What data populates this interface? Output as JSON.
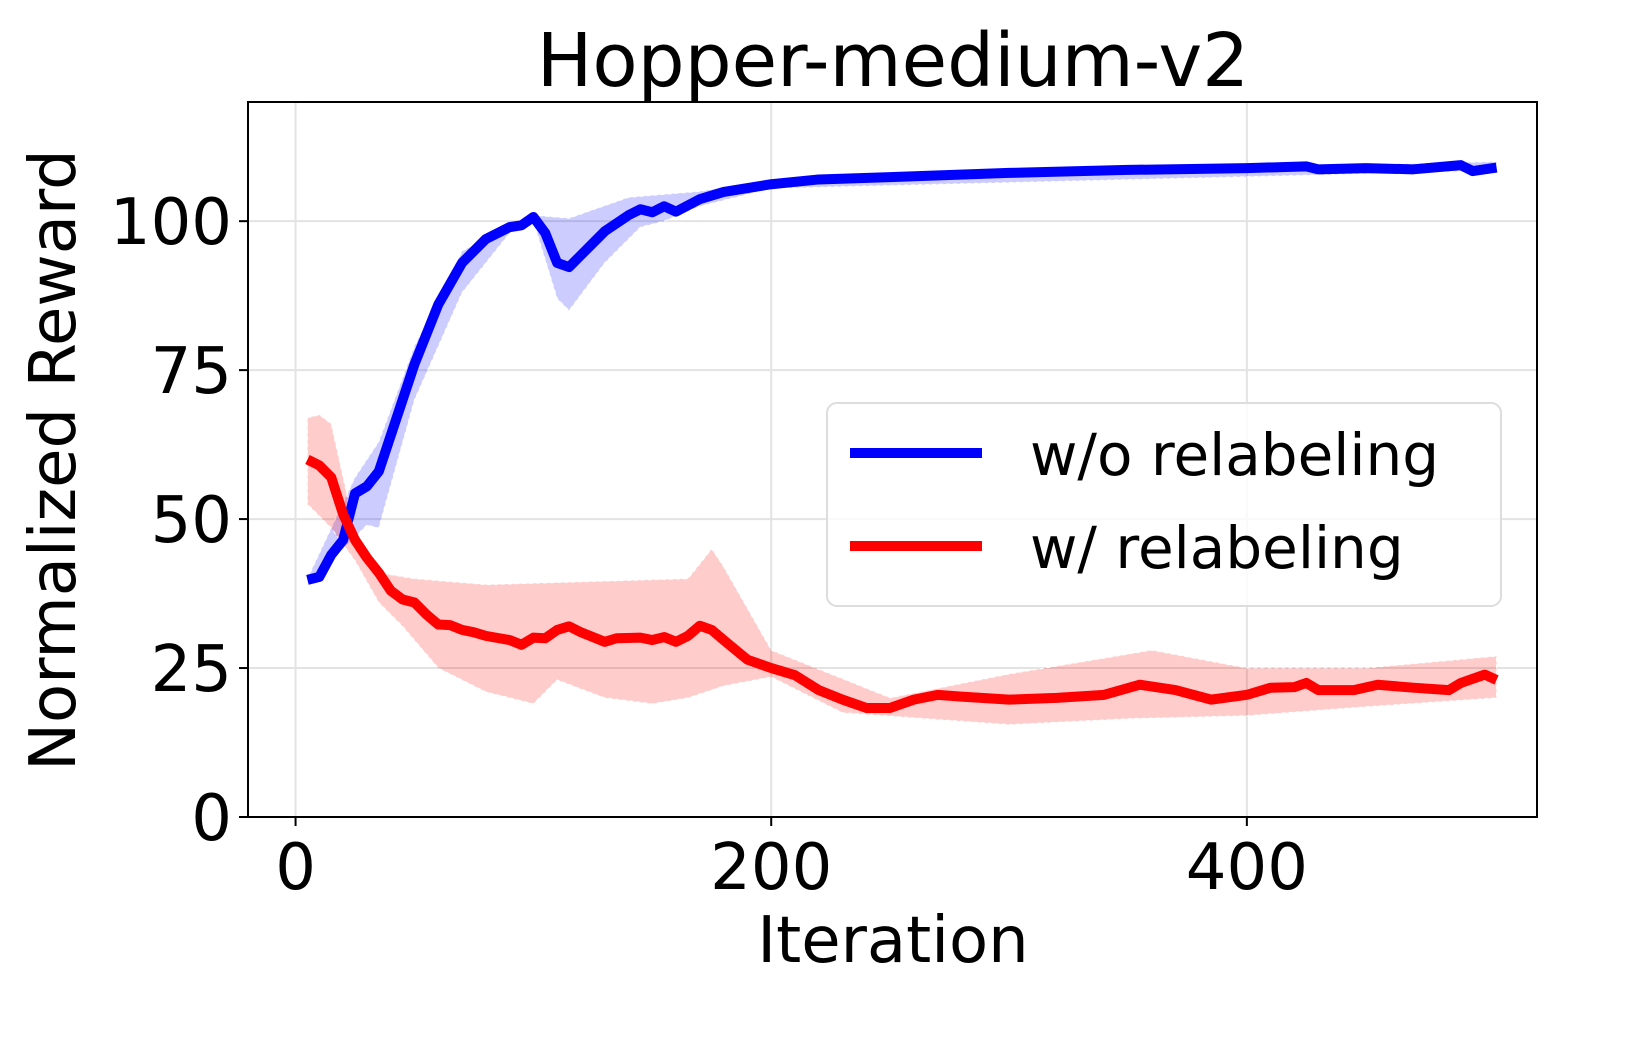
{
  "chart_data": {
    "type": "line",
    "title": "Hopper-medium-v2",
    "xlabel": "Iteration",
    "ylabel": "Normalized Reward",
    "xlim": [
      -20,
      522
    ],
    "ylim": [
      0,
      120
    ],
    "xticks": [
      0,
      200,
      400
    ],
    "yticks": [
      0,
      25,
      50,
      75,
      100
    ],
    "grid": true,
    "legend": "center-right",
    "series": [
      {
        "name": "w/o relabeling",
        "color": "#0000ff",
        "x": [
          5,
          10,
          15,
          20,
          25,
          30,
          35,
          40,
          50,
          60,
          70,
          80,
          90,
          95,
          100,
          105,
          110,
          115,
          120,
          130,
          140,
          145,
          150,
          155,
          160,
          170,
          180,
          200,
          220,
          250,
          300,
          350,
          400,
          425,
          430,
          450,
          470,
          490,
          495,
          505
        ],
        "y": [
          39.8,
          40.3,
          44,
          46.5,
          54.3,
          55.5,
          58,
          64,
          76,
          86,
          93,
          97,
          99,
          99.3,
          100.7,
          98,
          93,
          92.3,
          94.3,
          98.3,
          101,
          102,
          101.5,
          102.5,
          101.6,
          103.7,
          104.9,
          106.2,
          107,
          107.4,
          108.1,
          108.6,
          108.9,
          109.2,
          108.7,
          108.9,
          108.7,
          109.4,
          108.4,
          109
        ],
        "band": {
          "x_upper": [
            5,
            25,
            35,
            50,
            70,
            100,
            115,
            140,
            170,
            200,
            505
          ],
          "upper": [
            40,
            57,
            63,
            79,
            95,
            101,
            100.5,
            104,
            105,
            107,
            110
          ],
          "x_lower": [
            5,
            20,
            30,
            35,
            50,
            70,
            90,
            100,
            110,
            115,
            130,
            145,
            155,
            170,
            200,
            505
          ],
          "lower": [
            39.5,
            45,
            49,
            48.5,
            70,
            88,
            98,
            100,
            87,
            85,
            93,
            99,
            100,
            102.5,
            105.5,
            108.5
          ]
        }
      },
      {
        "name": "w/ relabeling",
        "color": "#ff0000",
        "x": [
          5,
          10,
          15,
          20,
          25,
          30,
          35,
          40,
          45,
          50,
          55,
          60,
          65,
          70,
          75,
          80,
          90,
          95,
          100,
          105,
          110,
          115,
          120,
          130,
          135,
          145,
          150,
          155,
          160,
          165,
          170,
          175,
          180,
          190,
          200,
          210,
          220,
          230,
          240,
          250,
          260,
          270,
          280,
          300,
          320,
          340,
          355,
          370,
          385,
          400,
          410,
          420,
          425,
          430,
          445,
          455,
          470,
          485,
          490,
          500,
          505
        ],
        "y": [
          60,
          59,
          57,
          50.8,
          46.5,
          43.5,
          41,
          38,
          36.5,
          36,
          34,
          32.3,
          32.2,
          31.4,
          31,
          30.4,
          29.7,
          28.9,
          30.1,
          30,
          31.4,
          32,
          31,
          29.4,
          30,
          30.1,
          29.7,
          30.2,
          29.4,
          30.4,
          32.1,
          31.4,
          29.7,
          26.4,
          25,
          23.8,
          21.3,
          19.7,
          18.3,
          18.3,
          19.7,
          20.5,
          20.2,
          19.7,
          20,
          20.5,
          22.2,
          21.3,
          19.7,
          20.5,
          21.7,
          21.8,
          22.5,
          21.3,
          21.3,
          22.2,
          21.7,
          21.3,
          22.5,
          23.9,
          23
        ],
        "band": {
          "x_upper": [
            5,
            10,
            15,
            25,
            35,
            50,
            80,
            165,
            175,
            180,
            200,
            250,
            300,
            360,
            400,
            450,
            505
          ],
          "upper": [
            67,
            67.5,
            66,
            48,
            41,
            40,
            39,
            40,
            45,
            42,
            28,
            20,
            24,
            28,
            25,
            25,
            27
          ],
          "x_lower": [
            5,
            15,
            25,
            35,
            45,
            60,
            80,
            100,
            110,
            130,
            150,
            165,
            180,
            200,
            230,
            300,
            350,
            400,
            450,
            505
          ],
          "lower": [
            52.5,
            48.5,
            43,
            36,
            32,
            25,
            21,
            19,
            23,
            20,
            19,
            20,
            22,
            23.5,
            17.5,
            15.5,
            16.5,
            17,
            18.5,
            20
          ]
        }
      }
    ]
  }
}
